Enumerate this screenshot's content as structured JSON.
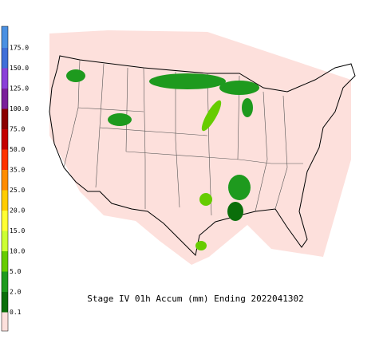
{
  "title": "Stage IV 01h Accum (mm) Ending 2022041302",
  "legend": {
    "items": [
      {
        "label": "175.0",
        "color": "#4a90e2"
      },
      {
        "label": "150.0",
        "color": "#3f6fd8"
      },
      {
        "label": "125.0",
        "color": "#8a3fd8"
      },
      {
        "label": "100.0",
        "color": "#7a1f9a"
      },
      {
        "label": "75.0",
        "color": "#8b0000"
      },
      {
        "label": "50.0",
        "color": "#c40000"
      },
      {
        "label": "35.0",
        "color": "#ff3300"
      },
      {
        "label": "25.0",
        "color": "#ff8c00"
      },
      {
        "label": "20.0",
        "color": "#ffcc00"
      },
      {
        "label": "15.0",
        "color": "#ffff33"
      },
      {
        "label": "10.0",
        "color": "#ccff33"
      },
      {
        "label": "5.0",
        "color": "#66cc00"
      },
      {
        "label": "2.0",
        "color": "#1e9a1e"
      },
      {
        "label": "0.1",
        "color": "#0a6e0a"
      }
    ],
    "base_color": "#fde0dc"
  }
}
